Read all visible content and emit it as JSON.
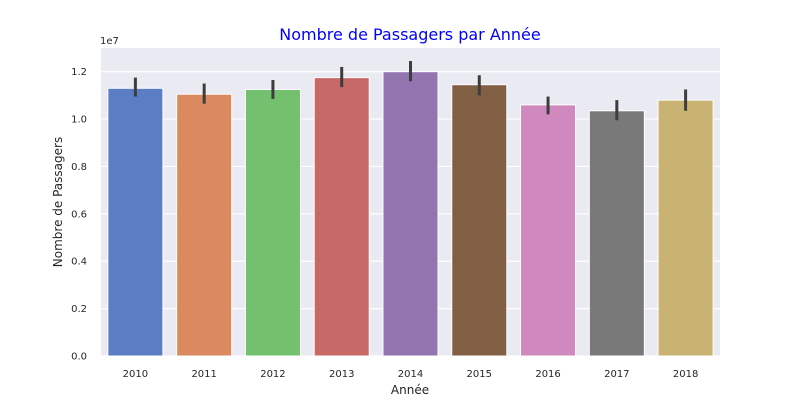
{
  "chart_data": {
    "type": "bar",
    "title": "Nombre de Passagers par Année",
    "title_color": "#0000ff",
    "xlabel": "Année",
    "ylabel": "Nombre de Passagers",
    "y_offset_label": "1e7",
    "y_scale": 10000000,
    "ylim": [
      0,
      13000000
    ],
    "y_ticks": [
      0,
      2000000,
      4000000,
      6000000,
      8000000,
      10000000,
      12000000
    ],
    "y_tick_labels": [
      "0.0",
      "0.2",
      "0.4",
      "0.6",
      "0.8",
      "1.0",
      "1.2"
    ],
    "grid": true,
    "background_color": "#eaeaf2",
    "categories": [
      "2010",
      "2011",
      "2012",
      "2013",
      "2014",
      "2015",
      "2016",
      "2017",
      "2018"
    ],
    "values": [
      11300000,
      11050000,
      11250000,
      11750000,
      12000000,
      11450000,
      10600000,
      10350000,
      10800000
    ],
    "error_low": [
      10950000,
      10650000,
      10850000,
      11350000,
      11600000,
      11000000,
      10200000,
      9950000,
      10350000
    ],
    "error_high": [
      11750000,
      11500000,
      11650000,
      12200000,
      12450000,
      11850000,
      10950000,
      10800000,
      11250000
    ],
    "colors": [
      "#5a7dc3",
      "#da8a5e",
      "#73c06e",
      "#c76a67",
      "#9274af",
      "#805f42",
      "#d089be",
      "#797979",
      "#c9b373"
    ]
  }
}
